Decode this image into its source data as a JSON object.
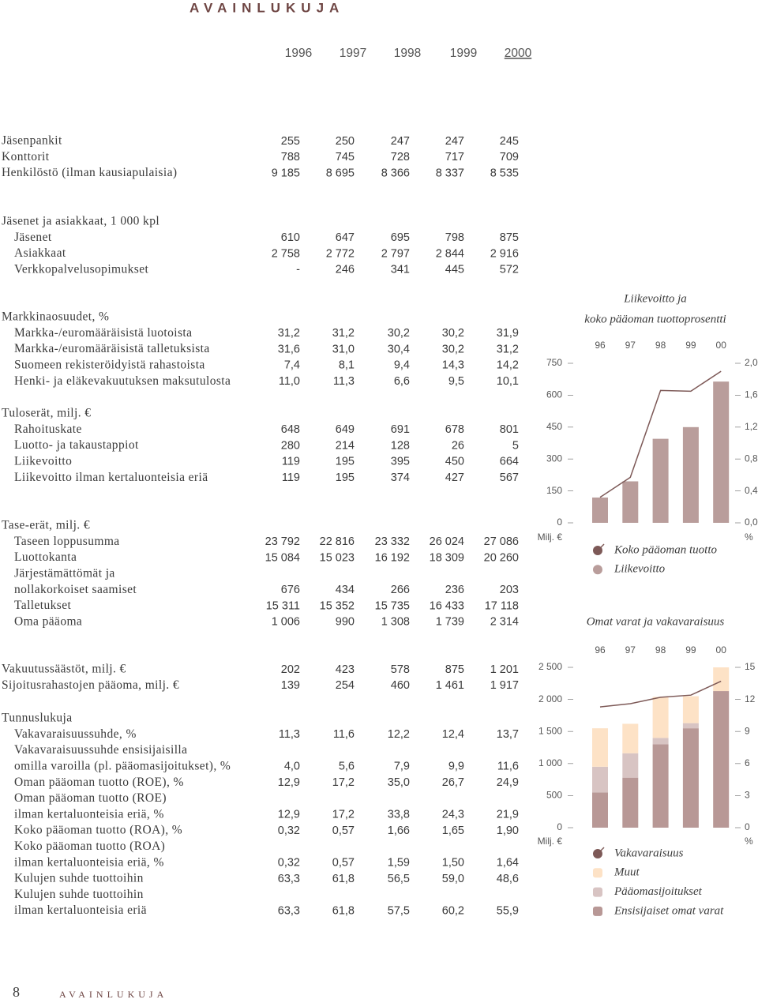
{
  "header": {
    "title": "AVAINLUKUJA"
  },
  "table": {
    "years": [
      "1996",
      "1997",
      "1998",
      "1999",
      "2000"
    ],
    "groups": [
      {
        "rows": [
          {
            "label": "Jäsenpankit",
            "values": [
              "255",
              "250",
              "247",
              "247",
              "245"
            ]
          },
          {
            "label": "Konttorit",
            "values": [
              "788",
              "745",
              "728",
              "717",
              "709"
            ]
          },
          {
            "label": "Henkilöstö (ilman kausiapulaisia)",
            "values": [
              "9 185",
              "8 695",
              "8 366",
              "8 337",
              "8 535"
            ]
          }
        ]
      },
      {
        "heading": "Jäsenet ja asiakkaat, 1 000 kpl",
        "rows": [
          {
            "label": "Jäsenet",
            "values": [
              "610",
              "647",
              "695",
              "798",
              "875"
            ]
          },
          {
            "label": "Asiakkaat",
            "values": [
              "2 758",
              "2 772",
              "2 797",
              "2 844",
              "2 916"
            ]
          },
          {
            "label": "Verkkopalvelusopimukset",
            "values": [
              "-",
              "246",
              "341",
              "445",
              "572"
            ]
          }
        ]
      },
      {
        "heading": "Markkinaosuudet, %",
        "rows": [
          {
            "label": "Markka-/euromääräisistä luotoista",
            "values": [
              "31,2",
              "31,2",
              "30,2",
              "30,2",
              "31,9"
            ]
          },
          {
            "label": "Markka-/euromääräisistä talletuksista",
            "values": [
              "31,6",
              "31,0",
              "30,4",
              "30,2",
              "31,2"
            ]
          },
          {
            "label": "Suomeen rekisteröidyistä rahastoista",
            "values": [
              "7,4",
              "8,1",
              "9,4",
              "14,3",
              "14,2"
            ]
          },
          {
            "label": "Henki- ja eläkevakuutuksen maksutulosta",
            "values": [
              "11,0",
              "11,3",
              "6,6",
              "9,5",
              "10,1"
            ]
          }
        ]
      },
      {
        "heading": "Tuloserät, milj. €",
        "rows": [
          {
            "label": "Rahoituskate",
            "values": [
              "648",
              "649",
              "691",
              "678",
              "801"
            ]
          },
          {
            "label": "Luotto- ja takaustappiot",
            "values": [
              "280",
              "214",
              "128",
              "26",
              "5"
            ]
          },
          {
            "label": "Liikevoitto",
            "values": [
              "119",
              "195",
              "395",
              "450",
              "664"
            ]
          },
          {
            "label": "Liikevoitto ilman kertaluonteisia eriä",
            "values": [
              "119",
              "195",
              "374",
              "427",
              "567"
            ]
          }
        ]
      },
      {
        "heading": "Tase-erät, milj. €",
        "rows": [
          {
            "label": "Taseen loppusumma",
            "values": [
              "23 792",
              "22 816",
              "23 332",
              "26 024",
              "27 086"
            ]
          },
          {
            "label": "Luottokanta",
            "values": [
              "15 084",
              "15 023",
              "16 192",
              "18 309",
              "20 260"
            ]
          },
          {
            "label": [
              "Järjestämättömät ja",
              "nollakorkoiset saamiset"
            ],
            "values": [
              "676",
              "434",
              "266",
              "236",
              "203"
            ]
          },
          {
            "label": "Talletukset",
            "values": [
              "15 311",
              "15 352",
              "15 735",
              "16 433",
              "17 118"
            ]
          },
          {
            "label": "Oma pääoma",
            "values": [
              "1 006",
              "990",
              "1 308",
              "1 739",
              "2 314"
            ]
          }
        ]
      },
      {
        "rows": [
          {
            "label": "Vakuutussäästöt, milj. €",
            "values": [
              "202",
              "423",
              "578",
              "875",
              "1 201"
            ]
          },
          {
            "label": "Sijoitusrahastojen pääoma, milj. €",
            "values": [
              "139",
              "254",
              "460",
              "1 461",
              "1 917"
            ]
          }
        ]
      },
      {
        "heading": "Tunnuslukuja",
        "rows": [
          {
            "label": "Vakavaraisuussuhde, %",
            "values": [
              "11,3",
              "11,6",
              "12,2",
              "12,4",
              "13,7"
            ]
          },
          {
            "label": [
              "Vakavaraisuussuhde ensisijaisilla",
              "omilla varoilla (pl. pääomasijoitukset), %"
            ],
            "values": [
              "4,0",
              "5,6",
              "7,9",
              "9,9",
              "11,6"
            ]
          },
          {
            "label": "Oman pääoman tuotto (ROE), %",
            "values": [
              "12,9",
              "17,2",
              "35,0",
              "26,7",
              "24,9"
            ]
          },
          {
            "label": [
              "Oman pääoman tuotto (ROE)",
              "ilman kertaluonteisia eriä, %"
            ],
            "values": [
              "12,9",
              "17,2",
              "33,8",
              "24,3",
              "21,9"
            ]
          },
          {
            "label": "Koko pääoman tuotto (ROA), %",
            "values": [
              "0,32",
              "0,57",
              "1,66",
              "1,65",
              "1,90"
            ]
          },
          {
            "label": [
              "Koko pääoman tuotto (ROA)",
              "ilman kertaluonteisia eriä, %"
            ],
            "values": [
              "0,32",
              "0,57",
              "1,59",
              "1,50",
              "1,64"
            ]
          },
          {
            "label": "Kulujen suhde tuottoihin",
            "values": [
              "63,3",
              "61,8",
              "56,5",
              "59,0",
              "48,6"
            ]
          },
          {
            "label": [
              "Kulujen suhde tuottoihin",
              "ilman kertaluonteisia eriä"
            ],
            "values": [
              "63,3",
              "61,8",
              "57,5",
              "60,2",
              "55,9"
            ]
          }
        ]
      }
    ]
  },
  "chart_data": [
    {
      "type": "bar",
      "title": "Liikevoitto ja",
      "subtitle": "koko pääoman tuottoprosentti",
      "categories": [
        "96",
        "97",
        "98",
        "99",
        "00"
      ],
      "ylabel": "Milj. €",
      "y2label": "%",
      "ylim": [
        0,
        750
      ],
      "yticks": [
        0,
        150,
        300,
        450,
        600,
        750
      ],
      "y2lim": [
        0,
        2
      ],
      "y2ticks": [
        {
          "value": 0,
          "label": "0,0"
        },
        {
          "value": 0.4,
          "label": "0,4"
        },
        {
          "value": 0.8,
          "label": "0,8"
        },
        {
          "value": 1.2,
          "label": "1,2"
        },
        {
          "value": 1.6,
          "label": "1,6"
        },
        {
          "value": 2,
          "label": "2,0"
        }
      ],
      "series": [
        {
          "name": "Koko pääoman tuotto",
          "type": "line",
          "axis": "y2",
          "color": "#7d5957",
          "values": [
            0.32,
            0.57,
            1.66,
            1.65,
            1.9
          ]
        },
        {
          "name": "Liikevoitto",
          "color": "#b99d9b",
          "values": [
            119,
            195,
            395,
            450,
            664
          ]
        }
      ]
    },
    {
      "type": "bar",
      "stacked": true,
      "title": "Omat varat ja vakavaraisuus",
      "categories": [
        "96",
        "97",
        "98",
        "99",
        "00"
      ],
      "ylabel": "Milj. €",
      "y2label": "%",
      "ylim": [
        0,
        2500
      ],
      "yticks": [
        0,
        500,
        {
          "value": 1000,
          "label": "1 000"
        },
        {
          "value": 1500,
          "label": "1 500"
        },
        {
          "value": 2000,
          "label": "2 000"
        },
        {
          "value": 2500,
          "label": "2 500"
        }
      ],
      "y2lim": [
        0,
        15
      ],
      "y2ticks": [
        0,
        3,
        6,
        9,
        12,
        15
      ],
      "series": [
        {
          "name": "Vakavaraisuus",
          "type": "line",
          "axis": "y2",
          "color": "#7d5957",
          "values": [
            11.3,
            11.6,
            12.2,
            12.4,
            13.7
          ]
        },
        {
          "name": "Muut",
          "color": "#fde2c6",
          "values": [
            600,
            460,
            640,
            420,
            370
          ]
        },
        {
          "name": "Pääomasijoitukset",
          "color": "#d8c4c3",
          "values": [
            400,
            380,
            100,
            80,
            0
          ]
        },
        {
          "name": "Ensisijaiset omat varat",
          "color": "#b89896",
          "values": [
            550,
            780,
            1300,
            1550,
            2130
          ]
        }
      ]
    }
  ],
  "footer": {
    "page": "8",
    "title": "AVAINLUKUJA"
  }
}
